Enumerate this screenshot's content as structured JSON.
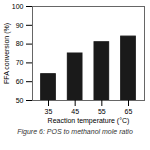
{
  "chart_data": {
    "type": "bar",
    "x": [
      35,
      45,
      55,
      65
    ],
    "values": [
      64,
      75,
      81,
      84
    ],
    "color": "#1a1a1a",
    "xlabel": "Reaction temperature (°C)",
    "ylabel": "FFA conversion (%)",
    "caption": "Figure 6: POS to methanol mole ratio",
    "xlim": [
      29,
      71
    ],
    "xticks": [
      35,
      45,
      55,
      65
    ],
    "ylim": [
      50,
      100
    ],
    "yticks": [
      50,
      60,
      70,
      80,
      90,
      100
    ]
  }
}
